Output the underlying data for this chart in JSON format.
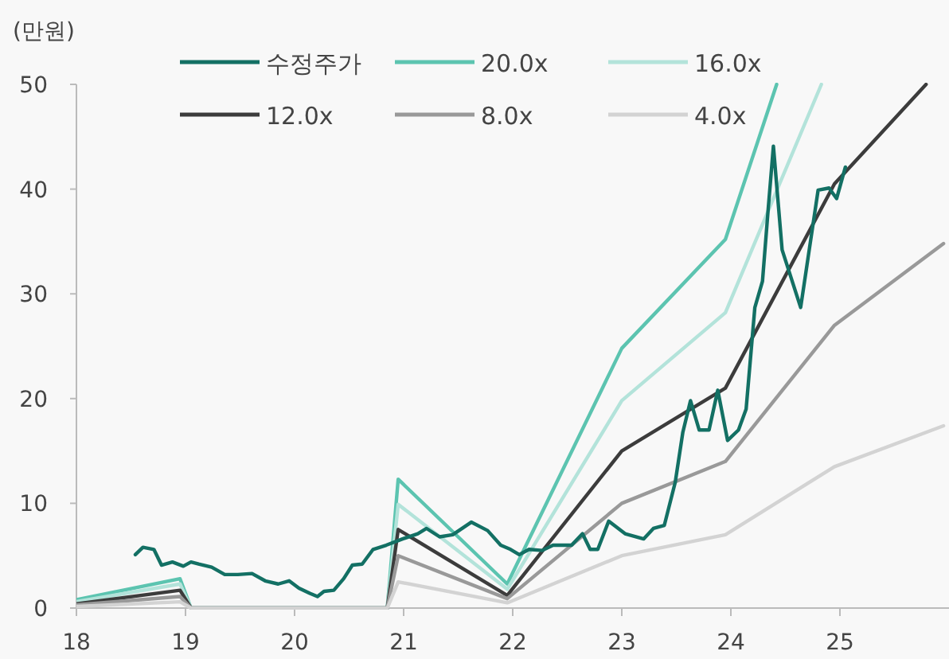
{
  "chart_data": {
    "type": "line",
    "ylabel": "(만원)",
    "xlim": [
      18,
      26
    ],
    "ylim": [
      0,
      50
    ],
    "xticks": [
      18,
      19,
      20,
      21,
      22,
      23,
      24,
      25
    ],
    "yticks": [
      0,
      10,
      20,
      30,
      40,
      50
    ],
    "legend": "top",
    "series": [
      {
        "name": "수정주가",
        "color": "#137064",
        "x": [
          18.54,
          18.61,
          18.71,
          18.78,
          18.88,
          18.98,
          19.05,
          19.12,
          19.24,
          19.36,
          19.48,
          19.61,
          19.73,
          19.85,
          19.95,
          20.04,
          20.14,
          20.21,
          20.27,
          20.36,
          20.45,
          20.53,
          20.62,
          20.72,
          20.84,
          20.99,
          21.13,
          21.21,
          21.33,
          21.45,
          21.62,
          21.77,
          21.89,
          21.98,
          22.06,
          22.15,
          22.27,
          22.37,
          22.54,
          22.64,
          22.71,
          22.78,
          22.88,
          23.03,
          23.2,
          23.29,
          23.39,
          23.49,
          23.56,
          23.63,
          23.71,
          23.8,
          23.88,
          23.97,
          24.07,
          24.14,
          24.22,
          24.29,
          24.34,
          24.39,
          24.47,
          24.64,
          24.8,
          24.9,
          24.97,
          25.05
        ],
        "values": [
          5.1,
          5.8,
          5.6,
          4.1,
          4.4,
          4.0,
          4.4,
          4.2,
          3.9,
          3.2,
          3.2,
          3.3,
          2.6,
          2.3,
          2.6,
          1.9,
          1.4,
          1.1,
          1.6,
          1.7,
          2.8,
          4.1,
          4.2,
          5.6,
          6.0,
          6.6,
          7.1,
          7.6,
          6.8,
          7.0,
          8.2,
          7.4,
          6.0,
          5.6,
          5.1,
          5.6,
          5.5,
          6.0,
          6.0,
          7.1,
          5.6,
          5.6,
          8.3,
          7.1,
          6.6,
          7.6,
          7.9,
          12.0,
          16.8,
          19.8,
          17.0,
          17.0,
          20.8,
          16.0,
          17.0,
          19.0,
          28.7,
          31.2,
          37.8,
          44.1,
          34.2,
          28.7,
          39.9,
          40.1,
          39.1,
          42.1
        ]
      },
      {
        "name": "20.0x",
        "color": "#5cc4b0",
        "x": [
          18,
          18.95,
          19.05,
          20.85,
          20.95,
          21.95,
          23.0,
          23.95,
          24.42
        ],
        "values": [
          0.8,
          2.8,
          0,
          0,
          12.3,
          2.3,
          24.8,
          35.2,
          50
        ]
      },
      {
        "name": "16.0x",
        "color": "#b3e3da",
        "x": [
          18,
          18.95,
          19.05,
          20.85,
          20.95,
          21.95,
          23.0,
          23.95,
          24.83
        ],
        "values": [
          0.6,
          2.3,
          0,
          0,
          9.9,
          1.8,
          19.8,
          28.2,
          50
        ]
      },
      {
        "name": "12.0x",
        "color": "#3c3c3c",
        "x": [
          18,
          18.95,
          19.05,
          20.85,
          20.95,
          21.95,
          23.0,
          23.95,
          24.95,
          25.79
        ],
        "values": [
          0.4,
          1.7,
          0,
          0,
          7.5,
          1.2,
          15.0,
          21.0,
          40.5,
          50
        ]
      },
      {
        "name": "8.0x",
        "color": "#999999",
        "x": [
          18,
          18.95,
          19.05,
          20.85,
          20.95,
          21.95,
          23.0,
          23.95,
          24.95,
          25.95
        ],
        "values": [
          0.3,
          1.1,
          0,
          0,
          5.0,
          0.9,
          10.0,
          14.0,
          27.0,
          34.8
        ]
      },
      {
        "name": "4.0x",
        "color": "#d3d3d3",
        "x": [
          18,
          18.95,
          19.05,
          20.85,
          20.95,
          21.95,
          23.0,
          23.95,
          24.95,
          25.95
        ],
        "values": [
          0.15,
          0.6,
          0,
          0,
          2.5,
          0.5,
          5.0,
          7.0,
          13.5,
          17.4
        ]
      }
    ]
  }
}
